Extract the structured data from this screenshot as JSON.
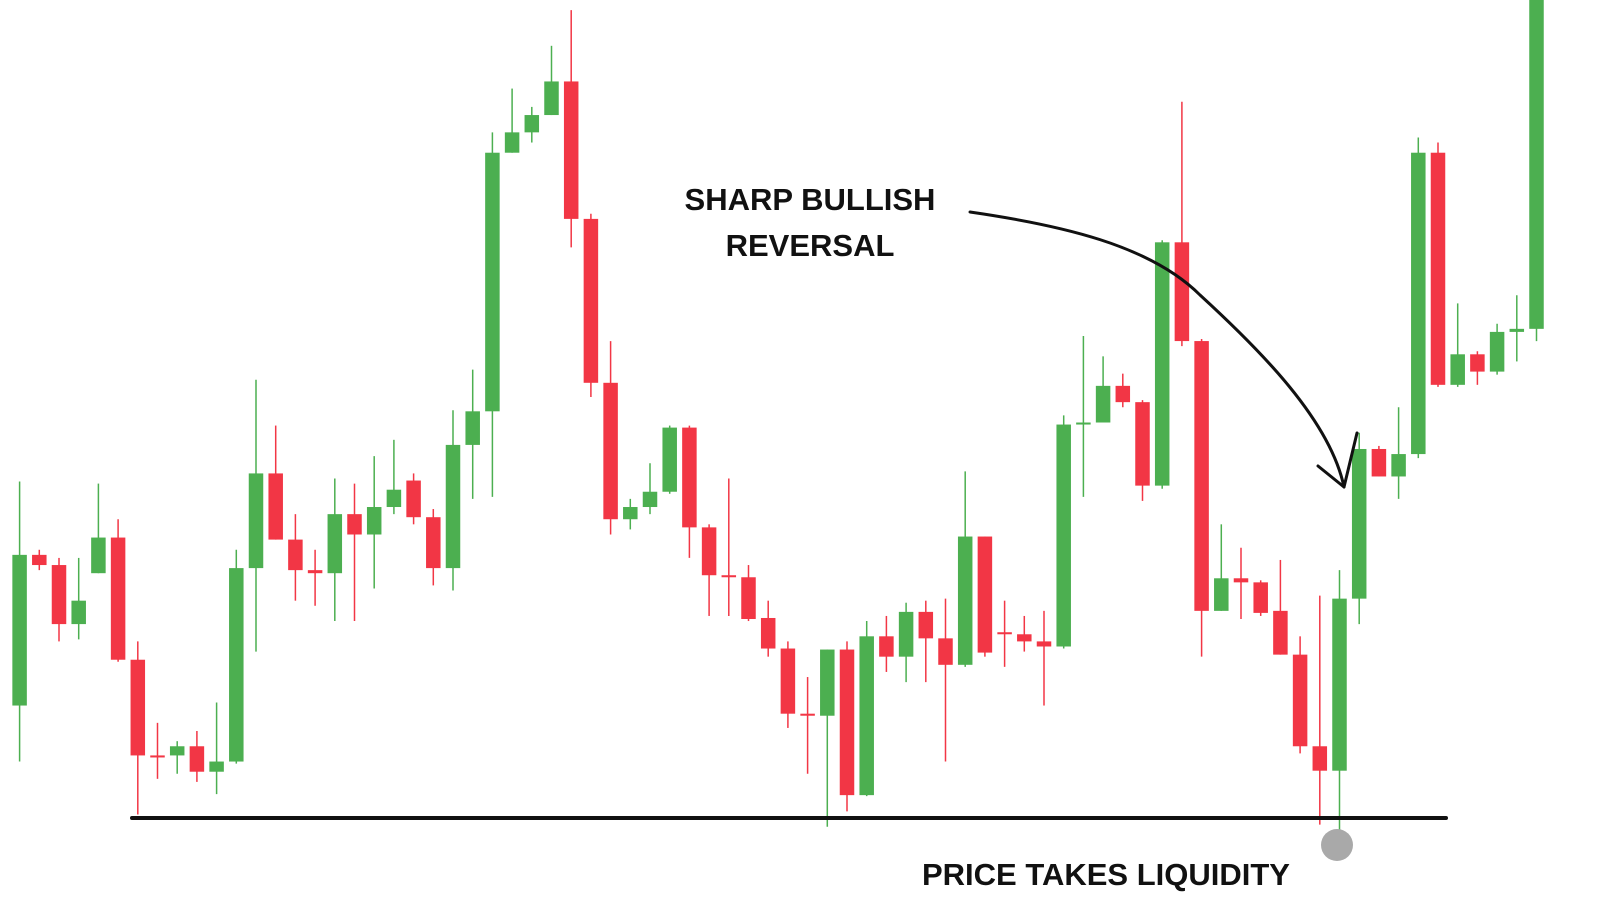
{
  "chart_data": {
    "type": "candlestick",
    "up_color": "#4caf50",
    "down_color": "#f23645",
    "ylim": [
      16,
      900
    ],
    "open": [
      207,
      355,
      345,
      287,
      337,
      372,
      252,
      158,
      158,
      167,
      142,
      152,
      342,
      435,
      370,
      340,
      337,
      395,
      375,
      402,
      428,
      392,
      342,
      463,
      496,
      750,
      770,
      787,
      820,
      685,
      524,
      390,
      402,
      417,
      480,
      382,
      335,
      333,
      293,
      263,
      199,
      197,
      262,
      119,
      275,
      255,
      299,
      273,
      247,
      373,
      279,
      277,
      270,
      265,
      483,
      485,
      521,
      505,
      423,
      662,
      565,
      300,
      332,
      328,
      300,
      257,
      167,
      143,
      312,
      459,
      432,
      454,
      750,
      522,
      552,
      535,
      574,
      577
    ],
    "high": [
      427,
      360,
      352,
      352,
      425,
      390,
      270,
      190,
      172,
      182,
      210,
      360,
      527,
      482,
      395,
      360,
      430,
      425,
      452,
      468,
      435,
      400,
      497,
      537,
      770,
      813,
      795,
      855,
      890,
      690,
      565,
      410,
      445,
      482,
      482,
      385,
      430,
      345,
      310,
      270,
      235,
      262,
      270,
      290,
      295,
      308,
      310,
      312,
      437,
      373,
      310,
      295,
      300,
      492,
      570,
      550,
      533,
      507,
      664,
      800,
      567,
      385,
      362,
      330,
      350,
      275,
      315,
      340,
      475,
      462,
      500,
      765,
      760,
      602,
      555,
      582,
      610,
      900
    ],
    "low": [
      152,
      340,
      270,
      272,
      337,
      250,
      100,
      135,
      140,
      132,
      120,
      150,
      260,
      370,
      310,
      305,
      290,
      290,
      322,
      395,
      385,
      325,
      320,
      410,
      412,
      750,
      760,
      787,
      657,
      510,
      375,
      380,
      395,
      415,
      352,
      295,
      295,
      290,
      255,
      185,
      140,
      88,
      103,
      118,
      240,
      230,
      230,
      152,
      245,
      255,
      245,
      260,
      207,
      263,
      412,
      485,
      500,
      408,
      420,
      560,
      255,
      300,
      292,
      295,
      257,
      160,
      90,
      80,
      287,
      432,
      410,
      450,
      520,
      520,
      522,
      532,
      545,
      565
    ],
    "close": [
      355,
      345,
      287,
      310,
      372,
      252,
      158,
      156,
      167,
      142,
      152,
      342,
      435,
      370,
      340,
      337,
      395,
      375,
      402,
      419,
      392,
      342,
      463,
      496,
      750,
      770,
      787,
      820,
      685,
      524,
      390,
      402,
      417,
      480,
      382,
      335,
      333,
      292,
      263,
      199,
      197,
      262,
      119,
      275,
      255,
      299,
      273,
      247,
      373,
      259,
      277,
      270,
      265,
      483,
      485,
      521,
      505,
      423,
      662,
      565,
      300,
      332,
      328,
      298,
      257,
      167,
      143,
      312,
      459,
      432,
      454,
      750,
      522,
      552,
      535,
      574,
      577,
      900
    ],
    "annotations": [
      {
        "lines": [
          "SHARP BULLISH",
          "REVERSAL"
        ]
      },
      {
        "lines": [
          "PRICE TAKES LIQUIDITY"
        ]
      }
    ]
  }
}
